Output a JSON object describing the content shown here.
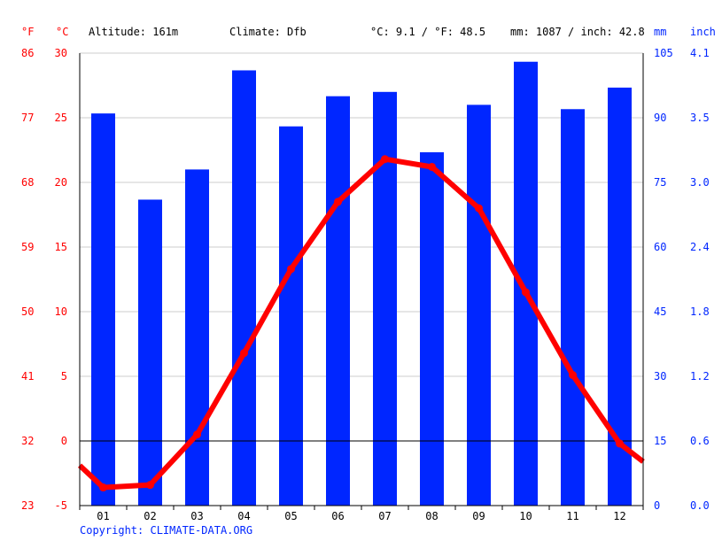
{
  "header": {
    "unit_f": "°F",
    "unit_c": "°C",
    "altitude": "Altitude: 161m",
    "climate": "Climate: Dfb",
    "avg_temp": "°C: 9.1 / °F: 48.5",
    "precip_total": "mm: 1087 / inch: 42.8",
    "unit_mm": "mm",
    "unit_inch": "inch"
  },
  "footer": {
    "copyright": "Copyright: CLIMATE-DATA.ORG"
  },
  "colors": {
    "temperature": "#ff0000",
    "precipitation": "#0026ff",
    "grid": "#cccccc",
    "text": "#000000"
  },
  "chart_data": {
    "type": "bar+line",
    "categories": [
      "01",
      "02",
      "03",
      "04",
      "05",
      "06",
      "07",
      "08",
      "09",
      "10",
      "11",
      "12"
    ],
    "series": [
      {
        "kind": "bar",
        "axis": "mm",
        "values": [
          91,
          71,
          78,
          101,
          88,
          95,
          96,
          82,
          93,
          103,
          92,
          97
        ]
      },
      {
        "kind": "line",
        "axis": "°C",
        "values": [
          -3.6,
          -3.4,
          0.5,
          6.8,
          13.3,
          18.5,
          21.8,
          21.2,
          18.0,
          11.5,
          5.1,
          -0.2
        ]
      }
    ],
    "temp_line_edges": {
      "start": -1.9,
      "end": -1.6
    },
    "ylim_c": [
      -5,
      30
    ],
    "ylim_mm": [
      0,
      105
    ],
    "axis_f": {
      "ticks": [
        23,
        32,
        41,
        50,
        59,
        68,
        77,
        86
      ]
    },
    "axis_c": {
      "ticks": [
        -5,
        0,
        5,
        10,
        15,
        20,
        25,
        30
      ]
    },
    "axis_mm": {
      "ticks": [
        0,
        15,
        30,
        45,
        60,
        75,
        90,
        105
      ]
    },
    "axis_inch": {
      "ticks": [
        "0.0",
        "0.6",
        "1.2",
        "1.8",
        "2.4",
        "3.0",
        "3.5",
        "4.1"
      ]
    },
    "grid": true
  }
}
